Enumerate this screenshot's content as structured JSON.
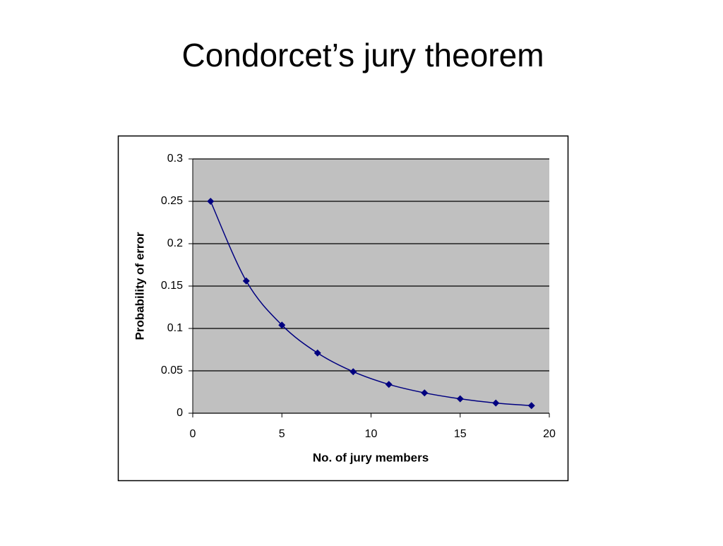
{
  "chart_data": {
    "type": "line",
    "title": "Condorcet’s jury theorem",
    "x_label": "No. of jury members",
    "y_label": "Probability of error",
    "x": [
      1,
      3,
      5,
      7,
      9,
      11,
      13,
      15,
      17,
      19
    ],
    "series": [
      {
        "name": "Probability of error",
        "color": "#000080",
        "values": [
          0.25,
          0.156,
          0.104,
          0.071,
          0.049,
          0.034,
          0.024,
          0.017,
          0.012,
          0.009
        ]
      }
    ],
    "xlim": [
      0,
      20
    ],
    "xticks": [
      0,
      5,
      10,
      15,
      20
    ],
    "ylim": [
      0,
      0.3
    ],
    "yticks": [
      0,
      0.05,
      0.1,
      0.15,
      0.2,
      0.25,
      0.3
    ],
    "grid": true,
    "plot_background": "#c0c0c0"
  }
}
